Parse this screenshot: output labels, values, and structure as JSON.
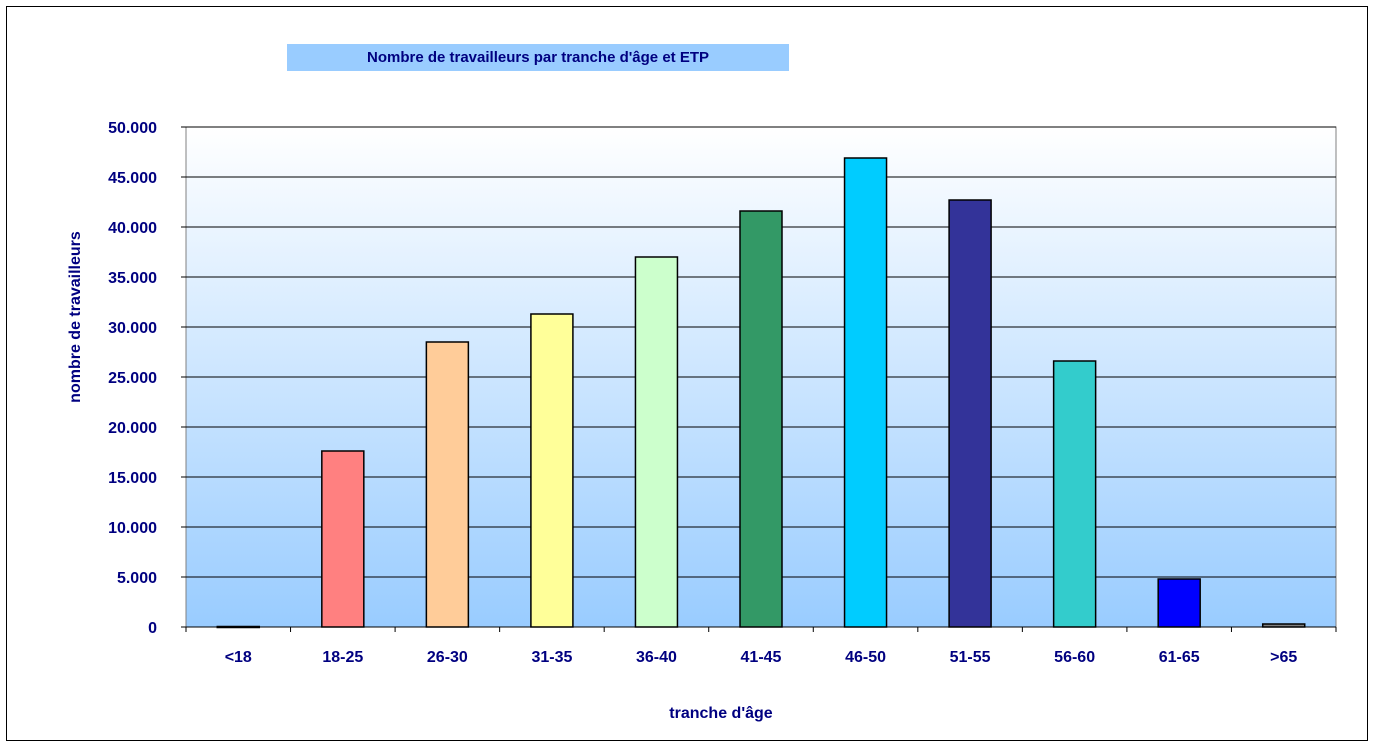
{
  "chart_data": {
    "type": "bar",
    "title": "Nombre de travailleurs par tranche d'âge et ETP",
    "xlabel": "tranche d'âge",
    "ylabel": "nombre de travailleurs",
    "categories": [
      "<18",
      "18-25",
      "26-30",
      "31-35",
      "36-40",
      "41-45",
      "46-50",
      "51-55",
      "56-60",
      "61-65",
      ">65"
    ],
    "values": [
      50,
      17600,
      28500,
      31300,
      37000,
      41600,
      46900,
      42700,
      26600,
      4800,
      300
    ],
    "colors": [
      "#808080",
      "#ff8080",
      "#ffcc99",
      "#ffff99",
      "#ccffcc",
      "#339966",
      "#00ccff",
      "#333399",
      "#33cccc",
      "#0000ff",
      "#808080"
    ],
    "ylim": [
      0,
      50000
    ],
    "yticks": [
      0,
      5000,
      10000,
      15000,
      20000,
      25000,
      30000,
      35000,
      40000,
      45000,
      50000
    ],
    "ytick_labels": [
      "0",
      "5.000",
      "10.000",
      "15.000",
      "20.000",
      "25.000",
      "30.000",
      "35.000",
      "40.000",
      "45.000",
      "50.000"
    ],
    "grid": true,
    "legend": "none",
    "plot_background": [
      "#ffffff",
      "#99ccff"
    ],
    "title_background": "#99ccff",
    "text_color": "#000080"
  }
}
